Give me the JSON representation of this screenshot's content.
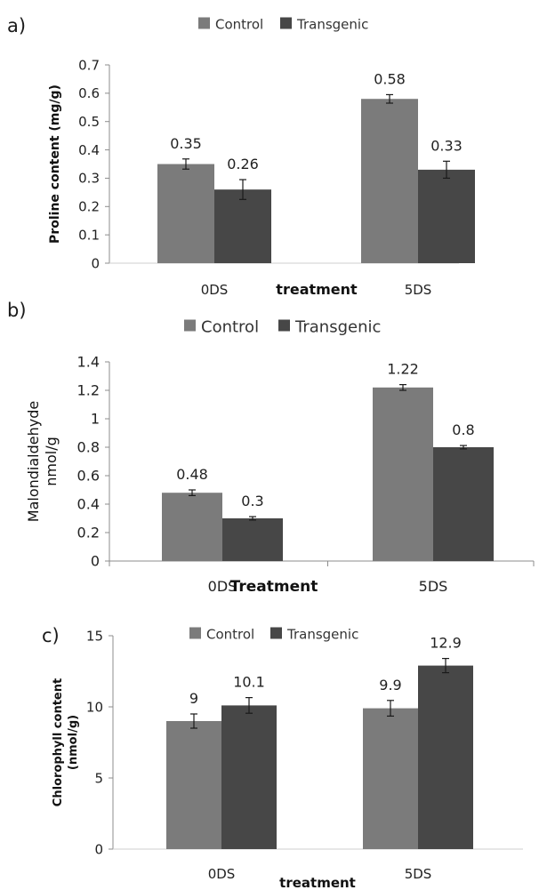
{
  "chart_data": [
    {
      "panel_label": "a)",
      "type": "bar",
      "categories": [
        "0DS",
        "5DS"
      ],
      "series": [
        {
          "name": "Control",
          "values": [
            0.35,
            0.58
          ],
          "errors": [
            0.018,
            0.015
          ]
        },
        {
          "name": "Transgenic",
          "values": [
            0.26,
            0.33
          ],
          "errors": [
            0.035,
            0.03
          ]
        }
      ],
      "value_labels": [
        [
          "0.35",
          "0.58"
        ],
        [
          "0.26",
          "0.33"
        ]
      ],
      "xlabel": "treatment",
      "ylabel": "Proline content (mg/g)",
      "ylim": [
        0,
        0.7
      ],
      "yticks": [
        "0",
        "0.1",
        "0.2",
        "0.3",
        "0.4",
        "0.5",
        "0.6",
        "0.7"
      ],
      "legend_position": "top",
      "grid": false
    },
    {
      "panel_label": "b)",
      "type": "bar",
      "categories": [
        "0DS",
        "5DS"
      ],
      "series": [
        {
          "name": "Control",
          "values": [
            0.48,
            1.22
          ],
          "errors": [
            0.02,
            0.02
          ]
        },
        {
          "name": "Transgenic",
          "values": [
            0.3,
            0.8
          ],
          "errors": [
            0.012,
            0.012
          ]
        }
      ],
      "value_labels": [
        [
          "0.48",
          "1.22"
        ],
        [
          "0.3",
          "0.8"
        ]
      ],
      "xlabel": "Treatment",
      "ylabel": "Malondialdehyde nmol/g",
      "ylabel_lines": [
        "Malondialdehyde",
        "nmol/g"
      ],
      "ylim": [
        0,
        1.4
      ],
      "yticks": [
        "0",
        "0.2",
        "0.4",
        "0.6",
        "0.8",
        "1",
        "1.2",
        "1.4"
      ],
      "legend_position": "top",
      "grid": false
    },
    {
      "panel_label": "c)",
      "type": "bar",
      "categories": [
        "0DS",
        "5DS"
      ],
      "series": [
        {
          "name": "Control",
          "values": [
            9,
            9.9
          ],
          "errors": [
            0.5,
            0.55
          ]
        },
        {
          "name": "Transgenic",
          "values": [
            10.1,
            12.9
          ],
          "errors": [
            0.55,
            0.5
          ]
        }
      ],
      "value_labels": [
        [
          "9",
          "9.9"
        ],
        [
          "10.1",
          "12.9"
        ]
      ],
      "xlabel": "treatment",
      "ylabel": "Chlorophyll content (nmol/g)",
      "ylabel_lines": [
        "Chlorophyll content",
        "(nmol/g)"
      ],
      "ylim": [
        0,
        15
      ],
      "yticks": [
        "0",
        "5",
        "10",
        "15"
      ],
      "legend_position": "top",
      "grid": false
    }
  ],
  "colors": {
    "control": "#7b7b7b",
    "transgenic": "#474747",
    "axis": "#8c8c8c",
    "text": "#222222"
  }
}
